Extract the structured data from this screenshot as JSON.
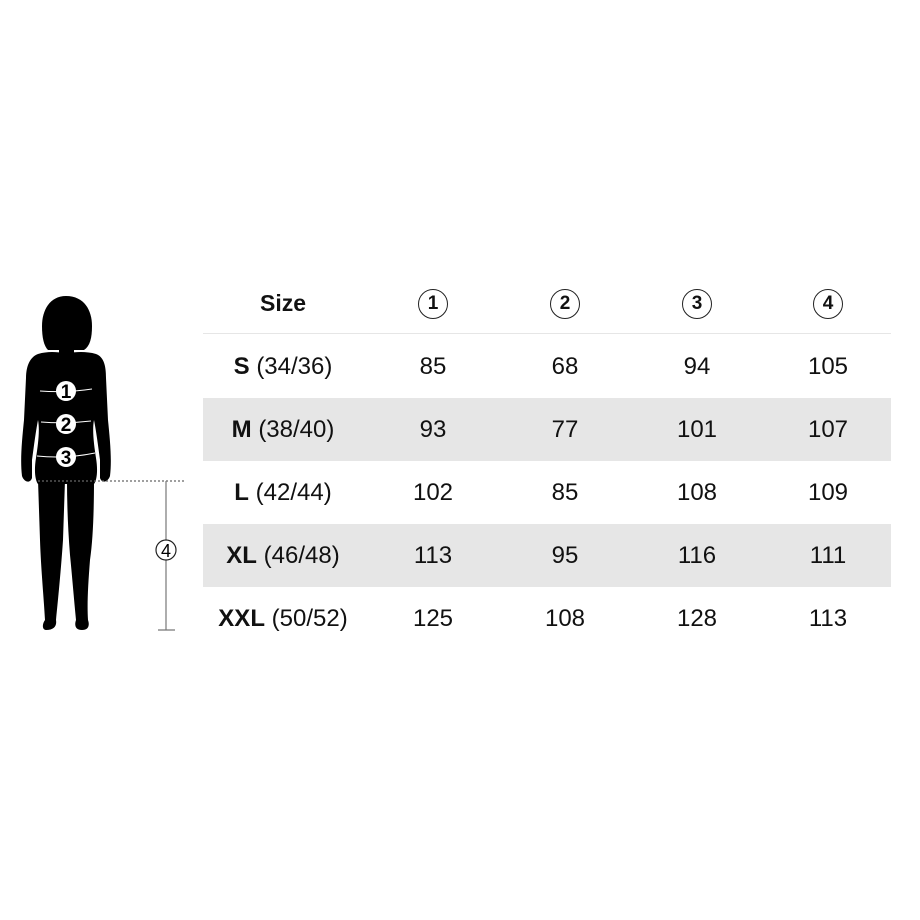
{
  "figure": {
    "markers": [
      "1",
      "2",
      "3",
      "4"
    ]
  },
  "table": {
    "header": {
      "size": "Size",
      "columns": [
        "1",
        "2",
        "3",
        "4"
      ]
    },
    "rows": [
      {
        "size": "S",
        "eu": "(34/36)",
        "values": [
          "85",
          "68",
          "94",
          "105"
        ]
      },
      {
        "size": "M",
        "eu": "(38/40)",
        "values": [
          "93",
          "77",
          "101",
          "107"
        ]
      },
      {
        "size": "L",
        "eu": "(42/44)",
        "values": [
          "102",
          "85",
          "108",
          "109"
        ]
      },
      {
        "size": "XL",
        "eu": "(46/48)",
        "values": [
          "113",
          "95",
          "116",
          "111"
        ]
      },
      {
        "size": "XXL",
        "eu": "(50/52)",
        "values": [
          "125",
          "108",
          "128",
          "113"
        ]
      }
    ],
    "shade_color": "#e6e6e6"
  }
}
